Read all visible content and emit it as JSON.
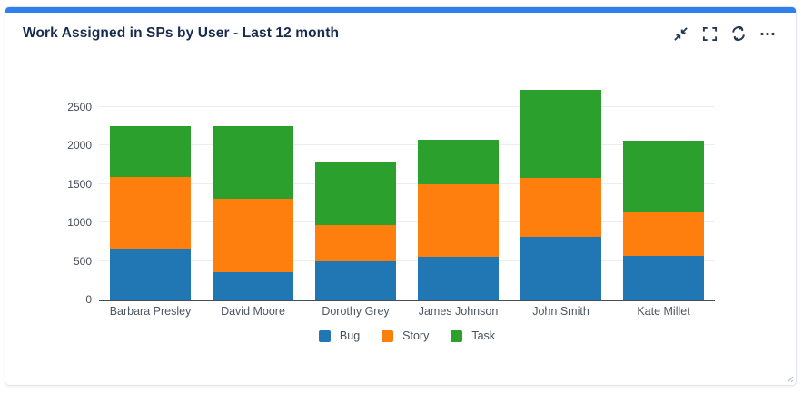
{
  "card": {
    "title": "Work Assigned in SPs by User - Last 12 month",
    "accent_color": "#2f80ed",
    "toolbar": {
      "collapse": "collapse",
      "fullscreen": "fullscreen",
      "refresh": "refresh",
      "more": "more-options"
    }
  },
  "chart_data": {
    "type": "bar",
    "stacked": true,
    "title": "",
    "categories": [
      "Barbara Presley",
      "David Moore",
      "Dorothy Grey",
      "James Johnson",
      "John Smith",
      "Kate Millet"
    ],
    "series": [
      {
        "name": "Bug",
        "color": "#2177b4",
        "values": [
          660,
          350,
          490,
          550,
          810,
          570
        ]
      },
      {
        "name": "Story",
        "color": "#ff7f0e",
        "values": [
          930,
          960,
          470,
          940,
          770,
          560
        ]
      },
      {
        "name": "Task",
        "color": "#2ca02c",
        "values": [
          660,
          940,
          830,
          580,
          1140,
          930
        ]
      }
    ],
    "xlabel": "",
    "ylabel": "",
    "ylim": [
      0,
      2800
    ],
    "yticks": [
      0,
      500,
      1000,
      1500,
      2000,
      2500
    ],
    "grid": true,
    "legend_position": "bottom",
    "axis_color": "#454f5b",
    "gridline_color": "#ededee"
  }
}
